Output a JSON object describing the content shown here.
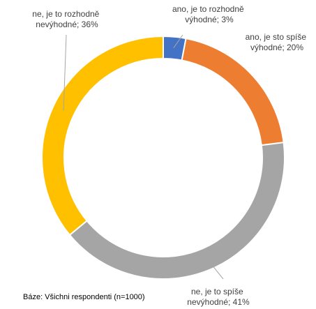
{
  "chart_data": {
    "type": "pie",
    "variant": "donut",
    "categories": [
      "ano, je to rozhodně výhodné",
      "ano, je sto spíše výhodné",
      "ne, je to spíše nevýhodné",
      "ne, je to rozhodně nevýhodné"
    ],
    "values": [
      3,
      20,
      41,
      36
    ],
    "unit": "%",
    "colors": [
      "#4472C4",
      "#ED7D31",
      "#A5A5A5",
      "#FFC000"
    ],
    "data_labels": [
      [
        "ano, je to rozhodně",
        "výhodné; 3%"
      ],
      [
        "ano, je sto spíše",
        "výhodné; 20%"
      ],
      [
        "ne, je to spíše",
        "nevýhodné; 41%"
      ],
      [
        "ne, je to rozhodně",
        "nevýhodné; 36%"
      ]
    ],
    "legend": "none",
    "start_angle": "12 o'clock, clockwise"
  },
  "footnote": "Báze: Všichni respondenti (n=1000)"
}
